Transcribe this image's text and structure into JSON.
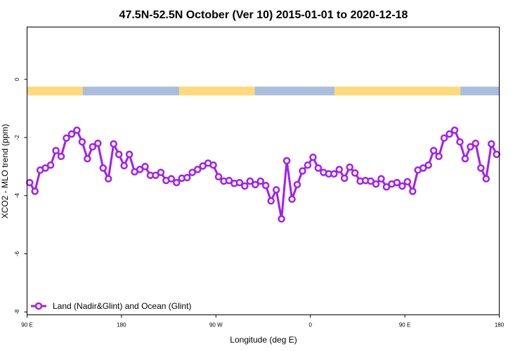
{
  "chart_data": {
    "type": "line",
    "title": "47.5N-52.5N October (Ver 10)   2015-01-01 to 2020-12-18",
    "xlabel": "Longitude (deg E)",
    "ylabel": "XCO2 - MLO trend (ppm)",
    "x_ticks": [
      {
        "value": 90,
        "label": "90 E"
      },
      {
        "value": 180,
        "label": "180"
      },
      {
        "value": 270,
        "label": "90 W"
      },
      {
        "value": 360,
        "label": "0"
      },
      {
        "value": 450,
        "label": "90 E"
      },
      {
        "value": 540,
        "label": "180"
      }
    ],
    "y_ticks": [
      {
        "value": 0,
        "label": "0"
      },
      {
        "value": -2,
        "label": "-2"
      },
      {
        "value": -4,
        "label": "-4"
      },
      {
        "value": -6,
        "label": "-6"
      },
      {
        "value": -8,
        "label": "-8"
      }
    ],
    "xlim": [
      90,
      540
    ],
    "ylim": [
      -8.1,
      1.8
    ],
    "grid": false,
    "legend_position": "bottom-left",
    "surface_strip": {
      "y_range": [
        -0.55,
        -0.25
      ],
      "land_color": "#FFD97A",
      "ocean_color": "#A8BEDC",
      "segments": [
        {
          "from": 90,
          "to": 143,
          "type": "land"
        },
        {
          "from": 143,
          "to": 235,
          "type": "ocean"
        },
        {
          "from": 235,
          "to": 307,
          "type": "land"
        },
        {
          "from": 307,
          "to": 383,
          "type": "ocean"
        },
        {
          "from": 383,
          "to": 503,
          "type": "land"
        },
        {
          "from": 503,
          "to": 540,
          "type": "ocean"
        }
      ]
    },
    "series": [
      {
        "name": "Land (Nadir&Glint) and Ocean (Glint)",
        "color": "#A020F0",
        "x": [
          92.5,
          97.5,
          102.5,
          107.5,
          112.5,
          117.5,
          122.5,
          127.5,
          132.5,
          137.5,
          142.5,
          147.5,
          152.5,
          157.5,
          162.5,
          167.5,
          172.5,
          177.5,
          182.5,
          187.5,
          192.5,
          197.5,
          202.5,
          207.5,
          212.5,
          217.5,
          222.5,
          227.5,
          232.5,
          237.5,
          242.5,
          247.5,
          252.5,
          257.5,
          262.5,
          267.5,
          272.5,
          277.5,
          282.5,
          287.5,
          292.5,
          297.5,
          302.5,
          307.5,
          312.5,
          317.5,
          322.5,
          327.5,
          332.5,
          337.5,
          342.5,
          347.5,
          352.5,
          357.5,
          362.5,
          367.5,
          372.5,
          377.5,
          382.5,
          387.5,
          392.5,
          397.5,
          402.5,
          407.5,
          412.5,
          417.5,
          422.5,
          427.5,
          432.5,
          437.5,
          442.5,
          447.5,
          452.5,
          457.5,
          462.5,
          467.5,
          472.5,
          477.5,
          482.5,
          487.5,
          492.5,
          497.5,
          502.5,
          507.5,
          512.5,
          517.5,
          522.5,
          527.5,
          532.5,
          537.5
        ],
        "y": [
          -3.55,
          -3.85,
          -3.12,
          -3.05,
          -2.95,
          -2.45,
          -2.65,
          -2.02,
          -1.88,
          -1.75,
          -2.15,
          -2.73,
          -2.32,
          -2.2,
          -3.05,
          -3.42,
          -2.22,
          -2.58,
          -2.97,
          -2.58,
          -3.18,
          -3.1,
          -3.0,
          -3.3,
          -3.3,
          -3.2,
          -3.48,
          -3.42,
          -3.55,
          -3.4,
          -3.38,
          -3.2,
          -3.1,
          -2.98,
          -2.88,
          -2.95,
          -3.35,
          -3.5,
          -3.48,
          -3.58,
          -3.55,
          -3.67,
          -3.5,
          -3.62,
          -3.5,
          -3.65,
          -4.18,
          -3.8,
          -4.8,
          -2.8,
          -4.12,
          -3.62,
          -3.15,
          -2.95,
          -2.68,
          -3.05,
          -3.2,
          -3.25,
          -3.25,
          -3.1,
          -3.4,
          -3.02,
          -3.22,
          -3.5,
          -3.48,
          -3.5,
          -3.6,
          -3.42,
          -3.7,
          -3.6,
          -3.55,
          -3.67,
          -3.52,
          -3.85,
          -3.12,
          -3.05,
          -2.95,
          -2.45,
          -2.65,
          -2.02,
          -1.88,
          -1.75,
          -2.15,
          -2.73,
          -2.32,
          -2.2,
          -3.05,
          -3.42,
          -2.22,
          -2.58
        ]
      }
    ]
  }
}
